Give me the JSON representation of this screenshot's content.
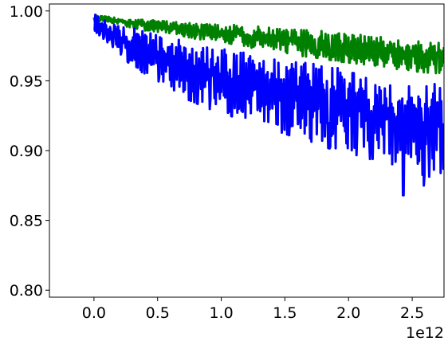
{
  "chart_data": {
    "type": "line",
    "title": "",
    "xlabel": "",
    "ylabel": "",
    "x_offset_label": "1e12",
    "xlim": [
      -0.35,
      2.75
    ],
    "ylim": [
      0.795,
      1.005
    ],
    "x_ticks": [
      0.0,
      0.5,
      1.0,
      1.5,
      2.0,
      2.5
    ],
    "x_tick_labels": [
      "0.0",
      "0.5",
      "1.0",
      "1.5",
      "2.0",
      "2.5"
    ],
    "y_ticks": [
      0.8,
      0.85,
      0.9,
      0.95,
      1.0
    ],
    "y_tick_labels": [
      "0.80",
      "0.85",
      "0.90",
      "0.95",
      "1.00"
    ],
    "grid": false,
    "series": [
      {
        "color": "#008000",
        "x": [
          0.0,
          0.1,
          0.2,
          0.3,
          0.4,
          0.5,
          0.6,
          0.7,
          0.8,
          0.9,
          1.0,
          1.1,
          1.2,
          1.3,
          1.4,
          1.5,
          1.6,
          1.7,
          1.8,
          1.9,
          2.0,
          2.1,
          2.2,
          2.3,
          2.4,
          2.5,
          2.6,
          2.75
        ],
        "upper": [
          0.997,
          0.996,
          0.995,
          0.994,
          0.994,
          0.993,
          0.993,
          0.992,
          0.992,
          0.991,
          0.99,
          0.99,
          0.989,
          0.989,
          0.988,
          0.987,
          0.987,
          0.986,
          0.986,
          0.985,
          0.984,
          0.983,
          0.982,
          0.981,
          0.98,
          0.979,
          0.978,
          0.977
        ],
        "lower": [
          0.993,
          0.992,
          0.99,
          0.988,
          0.986,
          0.985,
          0.984,
          0.982,
          0.98,
          0.979,
          0.978,
          0.976,
          0.974,
          0.973,
          0.972,
          0.97,
          0.968,
          0.967,
          0.966,
          0.964,
          0.963,
          0.962,
          0.961,
          0.96,
          0.958,
          0.957,
          0.956,
          0.955
        ]
      },
      {
        "color": "#0000ff",
        "x": [
          0.0,
          0.1,
          0.2,
          0.3,
          0.4,
          0.5,
          0.6,
          0.7,
          0.8,
          0.9,
          1.0,
          1.1,
          1.2,
          1.3,
          1.4,
          1.5,
          1.6,
          1.7,
          1.8,
          1.9,
          2.0,
          2.1,
          2.2,
          2.3,
          2.4,
          2.5,
          2.6,
          2.75
        ],
        "upper": [
          0.998,
          0.993,
          0.99,
          0.988,
          0.986,
          0.984,
          0.982,
          0.98,
          0.978,
          0.976,
          0.974,
          0.972,
          0.97,
          0.969,
          0.967,
          0.965,
          0.964,
          0.963,
          0.961,
          0.96,
          0.958,
          0.957,
          0.955,
          0.954,
          0.952,
          0.951,
          0.949,
          0.947
        ],
        "lower": [
          0.986,
          0.978,
          0.97,
          0.96,
          0.955,
          0.95,
          0.944,
          0.938,
          0.934,
          0.93,
          0.927,
          0.924,
          0.921,
          0.918,
          0.915,
          0.912,
          0.909,
          0.906,
          0.903,
          0.9,
          0.898,
          0.896,
          0.893,
          0.89,
          0.888,
          0.885,
          0.882,
          0.879
        ],
        "dips": [
          [
            2.43,
            0.868
          ],
          [
            2.59,
            0.875
          ],
          [
            2.37,
            0.892
          ],
          [
            2.19,
            0.894
          ],
          [
            2.75,
            0.898
          ]
        ]
      }
    ]
  }
}
